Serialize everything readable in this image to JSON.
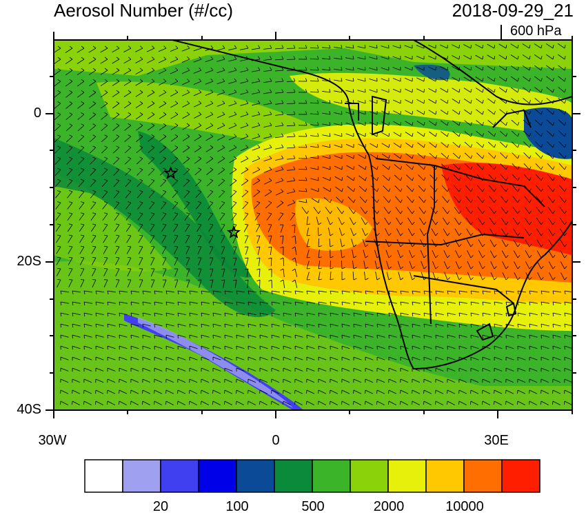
{
  "header": {
    "title": "Aerosol Number (#/cc)",
    "datetime": "2018-09-29_21",
    "level": "600 hPa"
  },
  "axes": {
    "lat_labels": [
      "0",
      "20S",
      "40S"
    ],
    "lon_labels": [
      "30W",
      "0",
      "30E"
    ]
  },
  "colorbar": {
    "colors": [
      "#ffffff",
      "#a0a0f0",
      "#4040f0",
      "#0000e8",
      "#0a4a96",
      "#0a8a3a",
      "#3cb42a",
      "#8cd20a",
      "#e6f00a",
      "#ffc800",
      "#ff6e00",
      "#ff1e00"
    ],
    "labels": [
      "20",
      "100",
      "500",
      "2000",
      "10000"
    ]
  },
  "markers": [
    {
      "name": "station-star",
      "lon": -14.2,
      "lat": -8.0
    },
    {
      "name": "station-star",
      "lon": -5.7,
      "lat": -16.0
    }
  ],
  "map_extent": {
    "lon_min": -30,
    "lon_max": 40,
    "lat_min": -40,
    "lat_max": 10
  }
}
